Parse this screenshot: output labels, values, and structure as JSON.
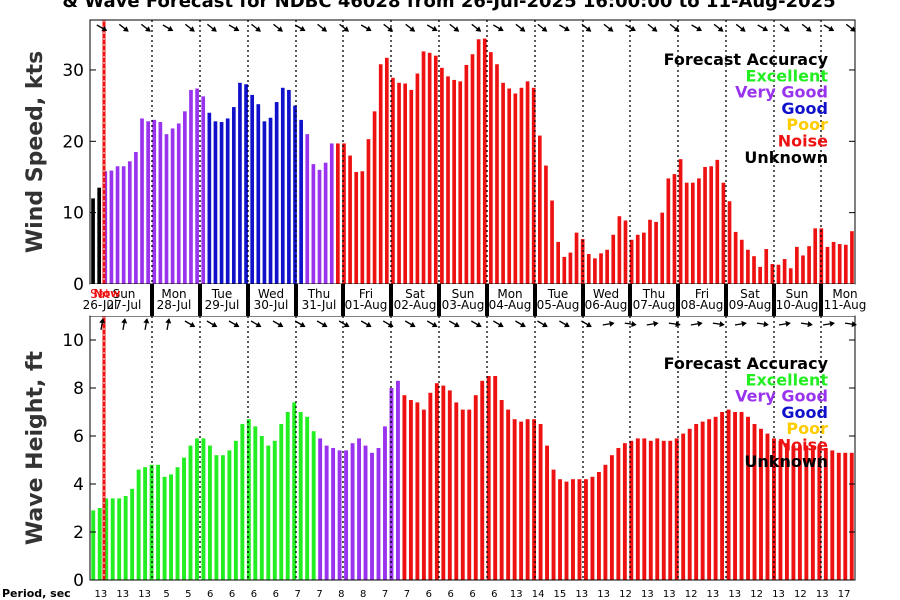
{
  "title": "& Wave Forecast for NDBC 46028 from 26-Jul-2025 16:00:00 to 11-Aug-2025",
  "colors": {
    "Excellent": "#22ee22",
    "Very Good": "#9933ee",
    "Good": "#1111cc",
    "Poor": "#ffcc00",
    "Noise": "#ee1111",
    "Unknown": "#000000"
  },
  "legend": {
    "title": "Forecast Accuracy",
    "items": [
      "Excellent",
      "Very Good",
      "Good",
      "Poor",
      "Noise",
      "Unknown"
    ]
  },
  "day_labels": [
    {
      "day": "Sat",
      "date": "26-Jul"
    },
    {
      "day": "Sun",
      "date": "27-Jul"
    },
    {
      "day": "Mon",
      "date": "28-Jul"
    },
    {
      "day": "Tue",
      "date": "29-Jul"
    },
    {
      "day": "Wed",
      "date": "30-Jul"
    },
    {
      "day": "Thu",
      "date": "31-Jul"
    },
    {
      "day": "Fri",
      "date": "01-Aug"
    },
    {
      "day": "Sat",
      "date": "02-Aug"
    },
    {
      "day": "Sun",
      "date": "03-Aug"
    },
    {
      "day": "Mon",
      "date": "04-Aug"
    },
    {
      "day": "Tue",
      "date": "05-Aug"
    },
    {
      "day": "Wed",
      "date": "06-Aug"
    },
    {
      "day": "Thu",
      "date": "07-Aug"
    },
    {
      "day": "Fri",
      "date": "08-Aug"
    },
    {
      "day": "Sat",
      "date": "09-Aug"
    },
    {
      "day": "Sun",
      "date": "10-Aug"
    },
    {
      "day": "Mon",
      "date": "11-Aug"
    }
  ],
  "now_marker_label": "Now",
  "period_label": "Period, sec",
  "chart_data": [
    {
      "type": "bar",
      "ylabel": "Wind Speed, kts",
      "ylim": [
        0,
        37
      ],
      "yticks": [
        0,
        10,
        20,
        30
      ],
      "segments": [
        {
          "accuracy": "Unknown",
          "values": [
            12,
            13.5
          ]
        },
        {
          "accuracy": "Very Good",
          "values": [
            15.8,
            15.9,
            16.5,
            16.5,
            17.2,
            18.5,
            23.2,
            22.8,
            23,
            22.7,
            21,
            21.8,
            22.5,
            24.2,
            27.2,
            27.4,
            26.3
          ]
        },
        {
          "accuracy": "Good",
          "values": [
            24,
            22.8,
            22.7,
            23.2,
            24.8,
            28.2,
            28,
            26.5,
            25.2,
            22.8,
            23.3,
            25.5,
            27.5,
            27.2,
            25,
            23
          ]
        },
        {
          "accuracy": "Very Good",
          "values": [
            21,
            16.8,
            16,
            17,
            19.7
          ]
        },
        {
          "accuracy": "Noise",
          "values": [
            19.7,
            19.7,
            18,
            15.7,
            15.8,
            20.3,
            24.2,
            30.8,
            31.7,
            28.9,
            28.2,
            28.1,
            27.2,
            29.5,
            32.6,
            32.4,
            32,
            30.3,
            29.1,
            28.6,
            28.4,
            30.7,
            32.2,
            34.3,
            34.4,
            32.5,
            30.8,
            28.2,
            27.4,
            26.7,
            27.5,
            28.4,
            27.5,
            20.8,
            16.6,
            11.7,
            5.9,
            3.8,
            4.4,
            7.2,
            6.3,
            4.2,
            3.6,
            4.3,
            4.8,
            6.9,
            9.5,
            8.9,
            6.2,
            6.9,
            7.2,
            9,
            8.7,
            10,
            14.8,
            15.4,
            17.5,
            14.2,
            14.2,
            14.8,
            16.4,
            16.5,
            17.4,
            14.2,
            11.6,
            7.3,
            6.2,
            4.8,
            3.9,
            2.4,
            4.9,
            2.8,
            2.7,
            3.5,
            2.2,
            5.2,
            4,
            5.3,
            7.8,
            7.8,
            5.2,
            5.9,
            5.6,
            5.5,
            7.4
          ]
        }
      ]
    },
    {
      "type": "bar",
      "ylabel": "Wave Height, ft",
      "ylim": [
        0,
        11
      ],
      "yticks": [
        0,
        2,
        4,
        6,
        8,
        10
      ],
      "segments": [
        {
          "accuracy": "Excellent",
          "values": [
            2.9,
            3,
            3.4,
            3.4,
            3.4,
            3.5,
            3.8,
            4.6,
            4.7,
            4.8,
            4.8,
            4.3,
            4.4,
            4.7,
            5.1,
            5.6,
            5.9,
            5.9,
            5.6,
            5.2,
            5.2,
            5.4,
            5.8,
            6.5,
            6.7,
            6.4,
            6,
            5.6,
            5.8,
            6.5,
            7,
            7.4,
            7,
            6.8,
            6.2
          ]
        },
        {
          "accuracy": "Very Good",
          "values": [
            5.9,
            5.6,
            5.5,
            5.4,
            5.4,
            5.7,
            5.9,
            5.6,
            5.3,
            5.5,
            6.4,
            8,
            8.3
          ]
        },
        {
          "accuracy": "Noise",
          "values": [
            7.7,
            7.5,
            7.4,
            7.1,
            7.8,
            8.2,
            8.1,
            7.9,
            7.4,
            7.1,
            7.1,
            7.7,
            8.3,
            8.5,
            8.5,
            7.5,
            7.1,
            6.7,
            6.6,
            6.7,
            6.7,
            6.5,
            5.6,
            4.6,
            4.2,
            4.1,
            4.2,
            4.2,
            4.2,
            4.3,
            4.5,
            4.8,
            5.2,
            5.5,
            5.7,
            5.8,
            5.9,
            5.9,
            5.8,
            5.9,
            5.8,
            5.8,
            5.9,
            6.1,
            6.3,
            6.5,
            6.6,
            6.7,
            6.8,
            7,
            7.1,
            7,
            7,
            6.8,
            6.5,
            6.3,
            6.1,
            5.9,
            5.8,
            5.7,
            5.6,
            5.6,
            5.6,
            5.6,
            5.6,
            5.5,
            5.4,
            5.3,
            5.3,
            5.3
          ]
        }
      ]
    }
  ],
  "periods": [
    "13",
    "13",
    "13",
    "5",
    "5",
    "6",
    "6",
    "6",
    "6",
    "7",
    "7",
    "8",
    "8",
    "7",
    "7",
    "6",
    "6",
    "6",
    "6",
    "13",
    "14",
    "15",
    "13",
    "13",
    "12",
    "13",
    "13",
    "12",
    "13",
    "13",
    "12",
    "13",
    "12",
    "13",
    "17"
  ]
}
